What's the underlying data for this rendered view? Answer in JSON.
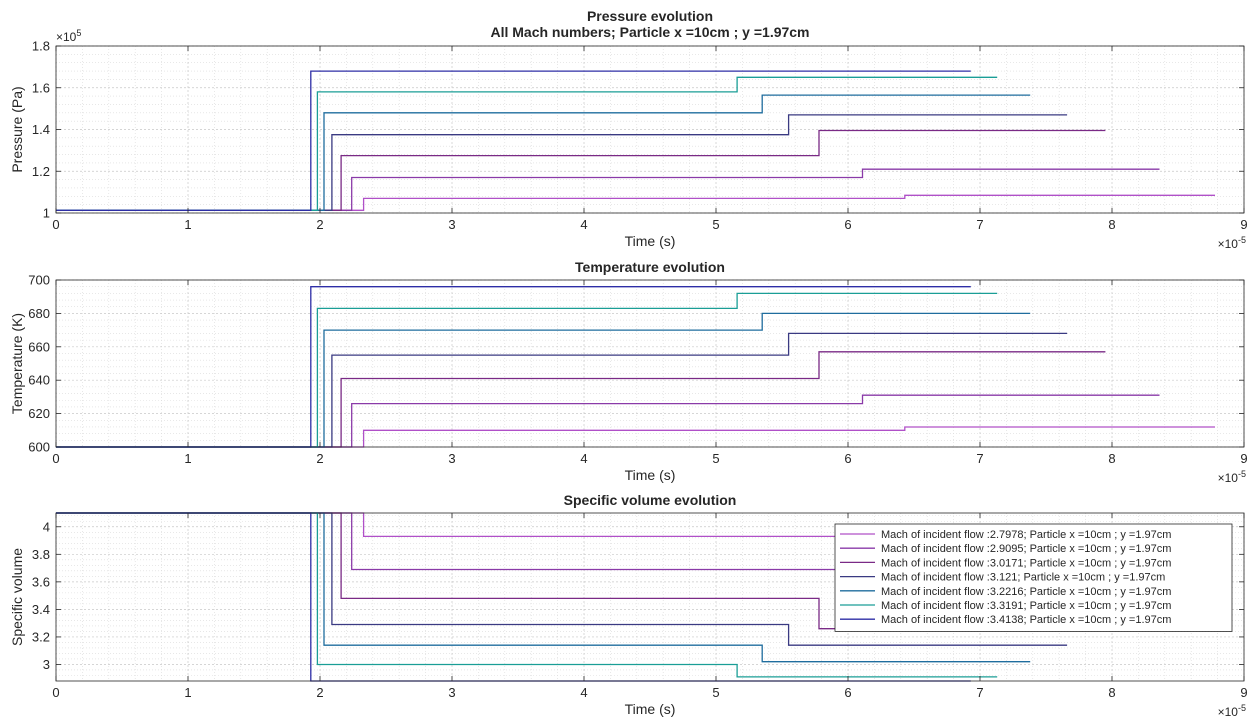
{
  "chart_data": [
    {
      "type": "line",
      "title": "Pressure evolution",
      "subtitle": "All Mach numbers; Particle x =10cm ; y =1.97cm",
      "xlabel": "Time (s)",
      "ylabel": "Pressure (Pa)",
      "x_exponent": "×10",
      "x_exponent_power": "-5",
      "y_exponent": "×10",
      "y_exponent_power": "5",
      "xlim": [
        0,
        9
      ],
      "ylim": [
        1.0,
        1.8
      ],
      "xticks": [
        0,
        1,
        2,
        3,
        4,
        5,
        6,
        7,
        8,
        9
      ],
      "yticks": [
        1,
        1.2,
        1.4,
        1.6,
        1.8
      ],
      "ytick_labels": [
        "1",
        "1.2",
        "1.4",
        "1.6",
        "1.8"
      ],
      "grid": true,
      "minor_grid": true,
      "series": [
        {
          "color": "#b050c8",
          "values": [
            [
              0,
              1.013
            ],
            [
              2.33,
              1.013
            ],
            [
              2.33,
              1.07
            ],
            [
              6.43,
              1.07
            ],
            [
              6.43,
              1.085
            ],
            [
              8.78,
              1.085
            ]
          ]
        },
        {
          "color": "#8a3aa8",
          "values": [
            [
              0,
              1.013
            ],
            [
              2.24,
              1.013
            ],
            [
              2.24,
              1.17
            ],
            [
              6.11,
              1.17
            ],
            [
              6.11,
              1.21
            ],
            [
              8.36,
              1.21
            ]
          ]
        },
        {
          "color": "#7a2a86",
          "values": [
            [
              0,
              1.013
            ],
            [
              2.16,
              1.013
            ],
            [
              2.16,
              1.275
            ],
            [
              5.78,
              1.275
            ],
            [
              5.78,
              1.395
            ],
            [
              7.95,
              1.395
            ]
          ]
        },
        {
          "color": "#3a3a82",
          "values": [
            [
              0,
              1.013
            ],
            [
              2.09,
              1.013
            ],
            [
              2.09,
              1.375
            ],
            [
              5.55,
              1.375
            ],
            [
              5.55,
              1.47
            ],
            [
              7.66,
              1.47
            ]
          ]
        },
        {
          "color": "#1f6d9e",
          "values": [
            [
              0,
              1.013
            ],
            [
              2.03,
              1.013
            ],
            [
              2.03,
              1.48
            ],
            [
              5.35,
              1.48
            ],
            [
              5.35,
              1.565
            ],
            [
              7.38,
              1.565
            ]
          ]
        },
        {
          "color": "#1a9e96",
          "values": [
            [
              0,
              1.013
            ],
            [
              1.98,
              1.013
            ],
            [
              1.98,
              1.58
            ],
            [
              5.16,
              1.58
            ],
            [
              5.16,
              1.65
            ],
            [
              7.13,
              1.65
            ]
          ]
        },
        {
          "color": "#2e2ea6",
          "values": [
            [
              0,
              1.013
            ],
            [
              1.93,
              1.013
            ],
            [
              1.93,
              1.68
            ],
            [
              6.93,
              1.68
            ]
          ]
        }
      ]
    },
    {
      "type": "line",
      "title": "Temperature evolution",
      "xlabel": "Time (s)",
      "ylabel": "Temperature (K)",
      "x_exponent": "×10",
      "x_exponent_power": "-5",
      "xlim": [
        0,
        9
      ],
      "ylim": [
        600,
        700
      ],
      "xticks": [
        0,
        1,
        2,
        3,
        4,
        5,
        6,
        7,
        8,
        9
      ],
      "yticks": [
        600,
        620,
        640,
        660,
        680,
        700
      ],
      "ytick_labels": [
        "600",
        "620",
        "640",
        "660",
        "680",
        "700"
      ],
      "grid": true,
      "minor_grid": true,
      "series": [
        {
          "color": "#b050c8",
          "values": [
            [
              0,
              600
            ],
            [
              2.33,
              600
            ],
            [
              2.33,
              610
            ],
            [
              6.43,
              610
            ],
            [
              6.43,
              612
            ],
            [
              8.78,
              612
            ]
          ]
        },
        {
          "color": "#8a3aa8",
          "values": [
            [
              0,
              600
            ],
            [
              2.24,
              600
            ],
            [
              2.24,
              626
            ],
            [
              6.11,
              626
            ],
            [
              6.11,
              631
            ],
            [
              8.36,
              631
            ]
          ]
        },
        {
          "color": "#7a2a86",
          "values": [
            [
              0,
              600
            ],
            [
              2.16,
              600
            ],
            [
              2.16,
              641
            ],
            [
              5.78,
              641
            ],
            [
              5.78,
              657
            ],
            [
              7.95,
              657
            ]
          ]
        },
        {
          "color": "#3a3a82",
          "values": [
            [
              0,
              600
            ],
            [
              2.09,
              600
            ],
            [
              2.09,
              655
            ],
            [
              5.55,
              655
            ],
            [
              5.55,
              668
            ],
            [
              7.66,
              668
            ]
          ]
        },
        {
          "color": "#1f6d9e",
          "values": [
            [
              0,
              600
            ],
            [
              2.03,
              600
            ],
            [
              2.03,
              670
            ],
            [
              5.35,
              670
            ],
            [
              5.35,
              680
            ],
            [
              7.38,
              680
            ]
          ]
        },
        {
          "color": "#1a9e96",
          "values": [
            [
              0,
              600
            ],
            [
              1.98,
              600
            ],
            [
              1.98,
              683
            ],
            [
              5.16,
              683
            ],
            [
              5.16,
              692
            ],
            [
              7.13,
              692
            ]
          ]
        },
        {
          "color": "#2e2ea6",
          "values": [
            [
              0,
              600
            ],
            [
              1.93,
              600
            ],
            [
              1.93,
              696
            ],
            [
              6.93,
              696
            ]
          ]
        }
      ]
    },
    {
      "type": "line",
      "title": "Specific volume evolution",
      "xlabel": "Time (s)",
      "ylabel": "Specific volume",
      "x_exponent": "×10",
      "x_exponent_power": "-5",
      "xlim": [
        0,
        9
      ],
      "ylim": [
        2.88,
        4.1
      ],
      "xticks": [
        0,
        1,
        2,
        3,
        4,
        5,
        6,
        7,
        8,
        9
      ],
      "yticks": [
        3,
        3.2,
        3.4,
        3.6,
        3.8,
        4
      ],
      "ytick_labels": [
        "3",
        "3.2",
        "3.4",
        "3.6",
        "3.8",
        "4"
      ],
      "grid": true,
      "minor_grid": true,
      "legend_position": "top-right",
      "series": [
        {
          "name": "Mach of incident flow :2.7978; Particle x =10cm ; y =1.97cm",
          "color": "#b050c8",
          "values": [
            [
              0,
              4.1
            ],
            [
              2.33,
              4.1
            ],
            [
              2.33,
              3.93
            ],
            [
              6.43,
              3.93
            ],
            [
              6.43,
              3.91
            ],
            [
              8.78,
              3.91
            ]
          ]
        },
        {
          "name": "Mach of incident flow :2.9095; Particle x =10cm ; y =1.97cm",
          "color": "#8a3aa8",
          "values": [
            [
              0,
              4.1
            ],
            [
              2.24,
              4.1
            ],
            [
              2.24,
              3.69
            ],
            [
              6.11,
              3.69
            ],
            [
              6.11,
              3.6
            ],
            [
              8.36,
              3.6
            ]
          ]
        },
        {
          "name": "Mach of incident flow :3.0171; Particle x =10cm ; y =1.97cm",
          "color": "#7a2a86",
          "values": [
            [
              0,
              4.1
            ],
            [
              2.16,
              4.1
            ],
            [
              2.16,
              3.48
            ],
            [
              5.78,
              3.48
            ],
            [
              5.78,
              3.26
            ],
            [
              7.95,
              3.26
            ]
          ]
        },
        {
          "name": "Mach of incident flow :3.121; Particle x =10cm ; y =1.97cm",
          "color": "#3a3a82",
          "values": [
            [
              0,
              4.1
            ],
            [
              2.09,
              4.1
            ],
            [
              2.09,
              3.29
            ],
            [
              5.55,
              3.29
            ],
            [
              5.55,
              3.14
            ],
            [
              7.66,
              3.14
            ]
          ]
        },
        {
          "name": "Mach of incident flow :3.2216; Particle x =10cm ; y =1.97cm",
          "color": "#1f6d9e",
          "values": [
            [
              0,
              4.1
            ],
            [
              2.03,
              4.1
            ],
            [
              2.03,
              3.14
            ],
            [
              5.35,
              3.14
            ],
            [
              5.35,
              3.02
            ],
            [
              7.38,
              3.02
            ]
          ]
        },
        {
          "name": "Mach of incident flow :3.3191; Particle x =10cm ; y =1.97cm",
          "color": "#1a9e96",
          "values": [
            [
              0,
              4.1
            ],
            [
              1.98,
              4.1
            ],
            [
              1.98,
              3.0
            ],
            [
              5.16,
              3.0
            ],
            [
              5.16,
              2.91
            ],
            [
              7.13,
              2.91
            ]
          ]
        },
        {
          "name": "Mach of incident flow :3.4138; Particle x =10cm ; y =1.97cm",
          "color": "#2e2ea6",
          "values": [
            [
              0,
              4.1
            ],
            [
              1.93,
              4.1
            ],
            [
              1.93,
              2.88
            ],
            [
              6.93,
              2.88
            ]
          ]
        }
      ]
    }
  ]
}
